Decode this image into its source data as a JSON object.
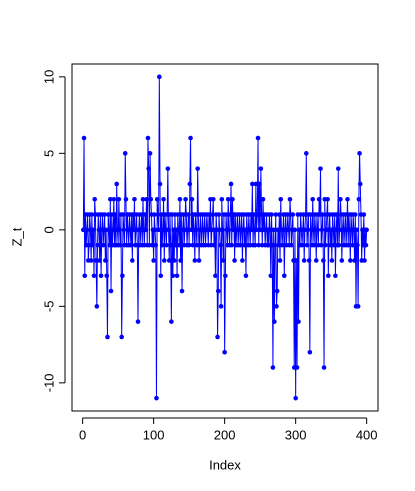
{
  "chart_data": {
    "type": "line",
    "x_label": "Index",
    "y_label": "Z_t",
    "color": "#0000ff",
    "markers": true,
    "xlim": [
      -14.96,
      415.96
    ],
    "xticks": [
      0,
      100,
      200,
      300,
      400
    ],
    "ylim": [
      -11.84,
      10.84
    ],
    "yticks": [
      -10,
      -5,
      0,
      5,
      10
    ],
    "x": [
      1,
      2,
      3,
      4,
      5,
      6,
      7,
      8,
      9,
      10,
      11,
      12,
      13,
      14,
      15,
      16,
      17,
      18,
      19,
      20,
      21,
      22,
      23,
      24,
      25,
      26,
      27,
      28,
      29,
      30,
      31,
      32,
      33,
      34,
      35,
      36,
      37,
      38,
      39,
      40,
      41,
      42,
      43,
      44,
      45,
      46,
      47,
      48,
      49,
      50,
      51,
      52,
      53,
      54,
      55,
      56,
      57,
      58,
      59,
      60,
      61,
      62,
      63,
      64,
      65,
      66,
      67,
      68,
      69,
      70,
      71,
      72,
      73,
      74,
      75,
      76,
      77,
      78,
      79,
      80,
      81,
      82,
      83,
      84,
      85,
      86,
      87,
      88,
      89,
      90,
      91,
      92,
      93,
      94,
      95,
      96,
      97,
      98,
      99,
      100,
      101,
      102,
      103,
      104,
      105,
      106,
      107,
      108,
      109,
      110,
      111,
      112,
      113,
      114,
      115,
      116,
      117,
      118,
      119,
      120,
      121,
      122,
      123,
      124,
      125,
      126,
      127,
      128,
      129,
      130,
      131,
      132,
      133,
      134,
      135,
      136,
      137,
      138,
      139,
      140,
      141,
      142,
      143,
      144,
      145,
      146,
      147,
      148,
      149,
      150,
      151,
      152,
      153,
      154,
      155,
      156,
      157,
      158,
      159,
      160,
      161,
      162,
      163,
      164,
      165,
      166,
      167,
      168,
      169,
      170,
      171,
      172,
      173,
      174,
      175,
      176,
      177,
      178,
      179,
      180,
      181,
      182,
      183,
      184,
      185,
      186,
      187,
      188,
      189,
      190,
      191,
      192,
      193,
      194,
      195,
      196,
      197,
      198,
      199,
      200,
      201,
      202,
      203,
      204,
      205,
      206,
      207,
      208,
      209,
      210,
      211,
      212,
      213,
      214,
      215,
      216,
      217,
      218,
      219,
      220,
      221,
      222,
      223,
      224,
      225,
      226,
      227,
      228,
      229,
      230,
      231,
      232,
      233,
      234,
      235,
      236,
      237,
      238,
      239,
      240,
      241,
      242,
      243,
      244,
      245,
      246,
      247,
      248,
      249,
      250,
      251,
      252,
      253,
      254,
      255,
      256,
      257,
      258,
      259,
      260,
      261,
      262,
      263,
      264,
      265,
      266,
      267,
      268,
      269,
      270,
      271,
      272,
      273,
      274,
      275,
      276,
      277,
      278,
      279,
      280,
      281,
      282,
      283,
      284,
      285,
      286,
      287,
      288,
      289,
      290,
      291,
      292,
      293,
      294,
      295,
      296,
      297,
      298,
      299,
      300,
      301,
      302,
      303,
      304,
      305,
      306,
      307,
      308,
      309,
      310,
      311,
      312,
      313,
      314,
      315,
      316,
      317,
      318,
      319,
      320,
      321,
      322,
      323,
      324,
      325,
      326,
      327,
      328,
      329,
      330,
      331,
      332,
      333,
      334,
      335,
      336,
      337,
      338,
      339,
      340,
      341,
      342,
      343,
      344,
      345,
      346,
      347,
      348,
      349,
      350,
      351,
      352,
      353,
      354,
      355,
      356,
      357,
      358,
      359,
      360,
      361,
      362,
      363,
      364,
      365,
      366,
      367,
      368,
      369,
      370,
      371,
      372,
      373,
      374,
      375,
      376,
      377,
      378,
      379,
      380,
      381,
      382,
      383,
      384,
      385,
      386,
      387,
      388,
      389,
      390,
      391,
      392,
      393,
      394,
      395,
      396,
      397,
      398,
      399,
      400
    ],
    "values": [
      0,
      6,
      -3,
      1,
      -1,
      0,
      1,
      -2,
      -1,
      1,
      0,
      -2,
      1,
      -1,
      0,
      -3,
      2,
      1,
      -2,
      -5,
      -1,
      1,
      0,
      -2,
      1,
      -3,
      0,
      1,
      -1,
      0,
      1,
      -2,
      0,
      -3,
      -7,
      1,
      0,
      -1,
      2,
      -4,
      1,
      -1,
      0,
      2,
      -1,
      1,
      -1,
      3,
      0,
      -1,
      2,
      0,
      -1,
      1,
      -7,
      -3,
      1,
      0,
      -1,
      5,
      2,
      -1,
      1,
      0,
      -1,
      1,
      0,
      -1,
      1,
      -2,
      1,
      0,
      2,
      -1,
      0,
      1,
      -1,
      -6,
      0,
      1,
      -1,
      0,
      1,
      -1,
      2,
      0,
      -1,
      1,
      0,
      2,
      -1,
      6,
      4,
      -1,
      5,
      2,
      1,
      -1,
      0,
      -2,
      1,
      0,
      -1,
      -11,
      2,
      1,
      0,
      10,
      3,
      -3,
      1,
      -1,
      0,
      2,
      -2,
      1,
      0,
      -1,
      1,
      4,
      0,
      -2,
      1,
      -1,
      -6,
      1,
      -3,
      0,
      -2,
      1,
      -1,
      0,
      -3,
      1,
      0,
      -1,
      2,
      -2,
      1,
      -4,
      0,
      1,
      -1,
      0,
      2,
      1,
      -1,
      0,
      1,
      -1,
      3,
      6,
      0,
      2,
      -1,
      1,
      0,
      -2,
      1,
      0,
      -1,
      4,
      1,
      -2,
      0,
      1,
      -1,
      0,
      1,
      -1,
      0,
      1,
      -1,
      0,
      1,
      0,
      -1,
      1,
      0,
      2,
      -1,
      0,
      1,
      2,
      -1,
      0,
      -3,
      1,
      0,
      -7,
      -4,
      1,
      0,
      -1,
      -5,
      2,
      0,
      -2,
      1,
      -8,
      -3,
      1,
      0,
      -1,
      2,
      0,
      -1,
      1,
      3,
      -1,
      2,
      0,
      1,
      -2,
      1,
      -1,
      0,
      1,
      -1,
      0,
      1,
      -1,
      0,
      1,
      -2,
      0,
      1,
      -1,
      0,
      -3,
      1,
      0,
      -1,
      1,
      0,
      -1,
      1,
      0,
      3,
      -1,
      1,
      0,
      -1,
      3,
      0,
      1,
      6,
      -1,
      3,
      0,
      4,
      1,
      -1,
      2,
      0,
      1,
      -1,
      0,
      1,
      -1,
      0,
      -1,
      1,
      0,
      -3,
      1,
      -1,
      -9,
      0,
      -6,
      -1,
      1,
      -5,
      -4,
      0,
      -1,
      1,
      -2,
      2,
      0,
      -1,
      0,
      1,
      -3,
      0,
      1,
      -1,
      0,
      1,
      0,
      -1,
      2,
      1,
      -1,
      0,
      1,
      -2,
      -9,
      0,
      -11,
      -2,
      -9,
      1,
      -6,
      0,
      -1,
      1,
      0,
      -1,
      0,
      1,
      -2,
      0,
      1,
      5,
      -1,
      0,
      1,
      -2,
      -8,
      1,
      0,
      -1,
      2,
      0,
      -1,
      1,
      0,
      -2,
      1,
      0,
      -1,
      2,
      1,
      4,
      -1,
      0,
      1,
      -2,
      -9,
      2,
      -1,
      0,
      1,
      2,
      -3,
      0,
      1,
      -1,
      0,
      -2,
      1,
      0,
      -1,
      1,
      -3,
      0,
      1,
      -1,
      4,
      -1,
      0,
      2,
      1,
      -2,
      0,
      1,
      -1,
      0,
      1,
      -1,
      0,
      2,
      -1,
      1,
      0,
      -2,
      1,
      0,
      -1,
      1,
      0,
      -2,
      1,
      -5,
      0,
      -1,
      -5,
      2,
      5,
      3,
      1,
      -2,
      0,
      -1,
      1,
      -2,
      0,
      -1,
      0
    ]
  }
}
